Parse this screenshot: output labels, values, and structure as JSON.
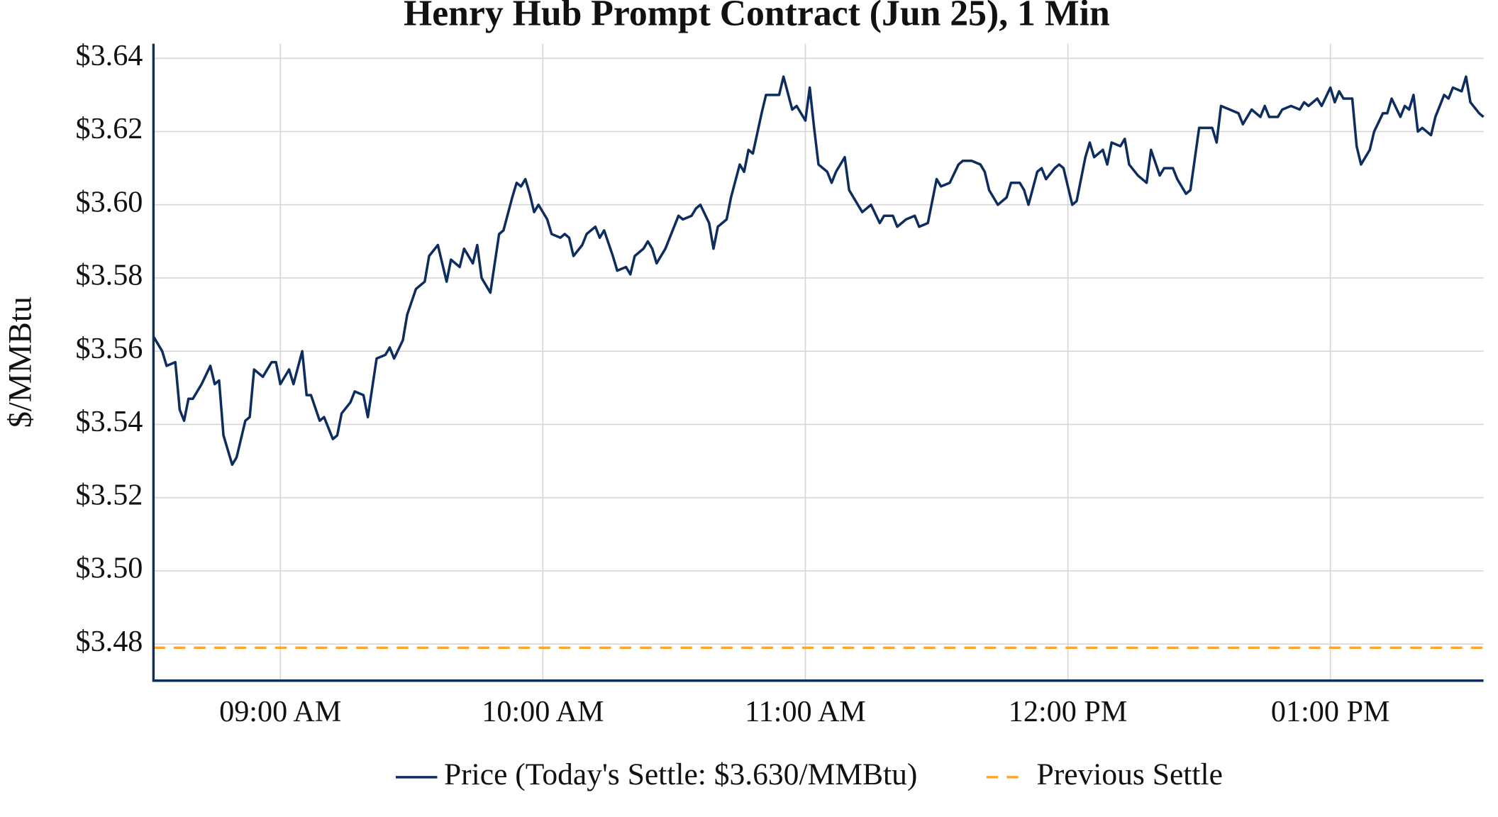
{
  "chart_data": {
    "type": "line",
    "title": "Henry Hub Prompt Contract (Jun 25), 1 Min",
    "y_label": "$/MMBtu",
    "x": [
      "08:31",
      "08:33",
      "08:34",
      "08:36",
      "08:37",
      "08:38",
      "08:39",
      "08:40",
      "08:42",
      "08:44",
      "08:45",
      "08:46",
      "08:47",
      "08:49",
      "08:50",
      "08:52",
      "08:53",
      "08:54",
      "08:56",
      "08:58",
      "08:59",
      "09:00",
      "09:02",
      "09:03",
      "09:05",
      "09:06",
      "09:07",
      "09:09",
      "09:10",
      "09:12",
      "09:13",
      "09:14",
      "09:16",
      "09:17",
      "09:19",
      "09:20",
      "09:22",
      "09:24",
      "09:25",
      "09:26",
      "09:28",
      "09:29",
      "09:31",
      "09:33",
      "09:34",
      "09:36",
      "09:38",
      "09:39",
      "09:41",
      "09:42",
      "09:44",
      "09:45",
      "09:46",
      "09:48",
      "09:50",
      "09:51",
      "09:53",
      "09:54",
      "09:55",
      "09:56",
      "09:57",
      "09:58",
      "09:59",
      "10:01",
      "10:02",
      "10:04",
      "10:05",
      "10:06",
      "10:07",
      "10:09",
      "10:10",
      "10:12",
      "10:13",
      "10:14",
      "10:16",
      "10:17",
      "10:19",
      "10:20",
      "10:21",
      "10:23",
      "10:24",
      "10:25",
      "10:26",
      "10:28",
      "10:29",
      "10:31",
      "10:32",
      "10:34",
      "10:35",
      "10:36",
      "10:38",
      "10:39",
      "10:40",
      "10:42",
      "10:43",
      "10:45",
      "10:46",
      "10:47",
      "10:48",
      "10:50",
      "10:51",
      "10:52",
      "10:54",
      "10:55",
      "10:57",
      "10:58",
      "11:00",
      "11:01",
      "11:02",
      "11:03",
      "11:05",
      "11:06",
      "11:07",
      "11:09",
      "11:10",
      "11:12",
      "11:13",
      "11:15",
      "11:17",
      "11:18",
      "11:20",
      "11:21",
      "11:23",
      "11:25",
      "11:26",
      "11:28",
      "11:30",
      "11:31",
      "11:33",
      "11:35",
      "11:36",
      "11:38",
      "11:40",
      "11:41",
      "11:42",
      "11:44",
      "11:46",
      "11:47",
      "11:49",
      "11:50",
      "11:51",
      "11:53",
      "11:54",
      "11:55",
      "11:57",
      "11:58",
      "11:59",
      "12:01",
      "12:02",
      "12:04",
      "12:05",
      "12:06",
      "12:08",
      "12:09",
      "12:10",
      "12:12",
      "12:13",
      "12:14",
      "12:16",
      "12:18",
      "12:19",
      "12:21",
      "12:22",
      "12:24",
      "12:25",
      "12:27",
      "12:28",
      "12:30",
      "12:33",
      "12:34",
      "12:35",
      "12:37",
      "12:39",
      "12:40",
      "12:41",
      "12:42",
      "12:44",
      "12:45",
      "12:46",
      "12:48",
      "12:49",
      "12:51",
      "12:53",
      "12:54",
      "12:55",
      "12:57",
      "12:58",
      "13:00",
      "13:01",
      "13:02",
      "13:03",
      "13:05",
      "13:06",
      "13:07",
      "13:09",
      "13:10",
      "13:12",
      "13:13",
      "13:14",
      "13:16",
      "13:17",
      "13:18",
      "13:19",
      "13:20",
      "13:21",
      "13:23",
      "13:24",
      "13:26",
      "13:27",
      "13:28",
      "13:30",
      "13:31",
      "13:32",
      "13:34",
      "13:35"
    ],
    "series": [
      {
        "name": "Price (Today's Settle: $3.630/MMBtu)",
        "color": "#0d2d5e",
        "values": [
          3.564,
          3.56,
          3.556,
          3.557,
          3.544,
          3.541,
          3.547,
          3.547,
          3.551,
          3.556,
          3.551,
          3.552,
          3.537,
          3.529,
          3.531,
          3.541,
          3.542,
          3.555,
          3.553,
          3.557,
          3.557,
          3.551,
          3.555,
          3.551,
          3.56,
          3.548,
          3.548,
          3.541,
          3.542,
          3.536,
          3.537,
          3.543,
          3.546,
          3.549,
          3.548,
          3.542,
          3.558,
          3.559,
          3.561,
          3.558,
          3.563,
          3.57,
          3.577,
          3.579,
          3.586,
          3.589,
          3.579,
          3.585,
          3.583,
          3.588,
          3.584,
          3.589,
          3.58,
          3.576,
          3.592,
          3.593,
          3.602,
          3.606,
          3.605,
          3.607,
          3.603,
          3.598,
          3.6,
          3.596,
          3.592,
          3.591,
          3.592,
          3.591,
          3.586,
          3.589,
          3.592,
          3.594,
          3.591,
          3.593,
          3.586,
          3.582,
          3.583,
          3.581,
          3.586,
          3.588,
          3.59,
          3.588,
          3.584,
          3.588,
          3.591,
          3.597,
          3.596,
          3.597,
          3.599,
          3.6,
          3.595,
          3.588,
          3.594,
          3.596,
          3.602,
          3.611,
          3.609,
          3.615,
          3.614,
          3.625,
          3.63,
          3.63,
          3.63,
          3.635,
          3.626,
          3.627,
          3.623,
          3.632,
          3.621,
          3.611,
          3.609,
          3.606,
          3.609,
          3.613,
          3.604,
          3.6,
          3.598,
          3.6,
          3.595,
          3.597,
          3.597,
          3.594,
          3.596,
          3.597,
          3.594,
          3.595,
          3.607,
          3.605,
          3.606,
          3.611,
          3.612,
          3.612,
          3.611,
          3.609,
          3.604,
          3.6,
          3.602,
          3.606,
          3.606,
          3.604,
          3.6,
          3.609,
          3.61,
          3.607,
          3.61,
          3.611,
          3.61,
          3.6,
          3.601,
          3.613,
          3.617,
          3.613,
          3.615,
          3.611,
          3.617,
          3.616,
          3.618,
          3.611,
          3.608,
          3.606,
          3.615,
          3.608,
          3.61,
          3.61,
          3.607,
          3.603,
          3.604,
          3.621,
          3.621,
          3.617,
          3.627,
          3.626,
          3.625,
          3.622,
          3.624,
          3.626,
          3.624,
          3.627,
          3.624,
          3.624,
          3.626,
          3.627,
          3.626,
          3.628,
          3.627,
          3.629,
          3.627,
          3.632,
          3.628,
          3.631,
          3.629,
          3.629,
          3.616,
          3.611,
          3.615,
          3.62,
          3.625,
          3.625,
          3.629,
          3.624,
          3.627,
          3.626,
          3.63,
          3.62,
          3.621,
          3.619,
          3.624,
          3.63,
          3.629,
          3.632,
          3.631,
          3.635,
          3.628,
          3.625,
          3.624
        ]
      }
    ],
    "reference_lines": [
      {
        "name": "Previous Settle",
        "value": 3.479,
        "color": "#ffa52a",
        "dash": true
      }
    ],
    "xlim": [
      "08:31",
      "13:35"
    ],
    "xticks": [
      {
        "value": "09:00",
        "label": "09:00 AM"
      },
      {
        "value": "10:00",
        "label": "10:00 AM"
      },
      {
        "value": "11:00",
        "label": "11:00 AM"
      },
      {
        "value": "12:00",
        "label": "12:00 PM"
      },
      {
        "value": "13:00",
        "label": "01:00 PM"
      }
    ],
    "ylim": [
      3.47,
      3.644
    ],
    "yticks": [
      {
        "value": 3.48,
        "label": "$3.48"
      },
      {
        "value": 3.5,
        "label": "$3.50"
      },
      {
        "value": 3.52,
        "label": "$3.52"
      },
      {
        "value": 3.54,
        "label": "$3.54"
      },
      {
        "value": 3.56,
        "label": "$3.56"
      },
      {
        "value": 3.58,
        "label": "$3.58"
      },
      {
        "value": 3.6,
        "label": "$3.60"
      },
      {
        "value": 3.62,
        "label": "$3.62"
      },
      {
        "value": 3.64,
        "label": "$3.64"
      }
    ],
    "grid": true,
    "legend": "bottom"
  }
}
